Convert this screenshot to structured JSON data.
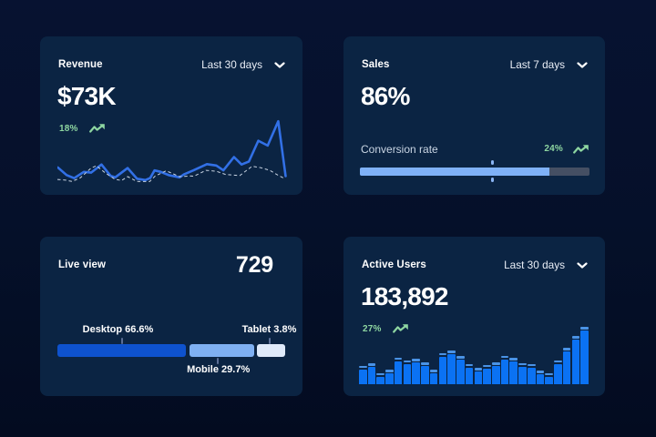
{
  "page": {
    "background_color": "#051029",
    "card_color": "#0b2443"
  },
  "colors": {
    "accent_green": "#8ed6a1",
    "line_blue": "#3270e6",
    "line_previous": "#c8d3e2",
    "progress_fill": "#7fb1f7",
    "progress_track": "#454f63",
    "desktop_blue": "#0e52ce",
    "mobile_blue": "#7fb0f2",
    "tablet_blue": "#dfeafa",
    "bar_blue": "#0b72f3",
    "bar_cap_blue": "#4a93e6"
  },
  "cards": {
    "revenue": {
      "title": "Revenue",
      "range_label": "Last 30 days",
      "value": "$73K",
      "delta": "18%"
    },
    "sales": {
      "title": "Sales",
      "range_label": "Last 7 days",
      "value": "86%",
      "metric_label": "Conversion rate",
      "delta": "24%"
    },
    "live_view": {
      "title": "Live view",
      "value": "729",
      "segments": [
        {
          "label": "Desktop 66.6%",
          "name": "desktop",
          "value": 66.6
        },
        {
          "label": "Mobile 29.7%",
          "name": "mobile",
          "value": 29.7
        },
        {
          "label": "Tablet 3.8%",
          "name": "tablet",
          "value": 3.8
        }
      ]
    },
    "active_users": {
      "title": "Active Users",
      "range_label": "Last 30 days",
      "value": "183,892",
      "delta": "27%"
    }
  },
  "chart_data": [
    {
      "type": "line",
      "title": "Revenue trend",
      "legend_position": "none",
      "grid": false,
      "x_range": [
        0,
        100
      ],
      "y_range": [
        0,
        100
      ],
      "series": [
        {
          "name": "current",
          "style": "solid",
          "color": "#3270e6",
          "points": [
            [
              0.2,
              24.3
            ],
            [
              4.0,
              13.1
            ],
            [
              7.3,
              8.5
            ],
            [
              11.5,
              17.8
            ],
            [
              14.7,
              16.8
            ],
            [
              19.2,
              28.8
            ],
            [
              23.2,
              11.8
            ],
            [
              25.2,
              9.7
            ],
            [
              30.6,
              23.5
            ],
            [
              34.7,
              7.7
            ],
            [
              38.3,
              5.7
            ],
            [
              40.4,
              8.6
            ],
            [
              42.3,
              20.0
            ],
            [
              44.9,
              18.0
            ],
            [
              48.7,
              12.8
            ],
            [
              53.2,
              9.7
            ],
            [
              55.1,
              14.1
            ],
            [
              59.3,
              20.1
            ],
            [
              65.1,
              29.3
            ],
            [
              69.2,
              27.3
            ],
            [
              72.3,
              20.1
            ],
            [
              76.9,
              39.9
            ],
            [
              80.2,
              28.8
            ],
            [
              83.4,
              33.2
            ],
            [
              87.5,
              64.1
            ],
            [
              91.6,
              56.9
            ],
            [
              96.2,
              93.0
            ],
            [
              99.4,
              11.5
            ]
          ]
        },
        {
          "name": "previous",
          "style": "dashed",
          "color": "#c8d3e2",
          "points": [
            [
              0,
              6.6
            ],
            [
              3.6,
              5.5
            ],
            [
              6.4,
              3.6
            ],
            [
              10.0,
              9.0
            ],
            [
              14.7,
              23.5
            ],
            [
              17.0,
              26.9
            ],
            [
              21.0,
              15.9
            ],
            [
              25.0,
              7.0
            ],
            [
              27.9,
              5.0
            ],
            [
              30.6,
              10.8
            ],
            [
              34.7,
              3.7
            ],
            [
              40.2,
              3.5
            ],
            [
              42.6,
              11.8
            ],
            [
              47.4,
              19.5
            ],
            [
              53.2,
              10.8
            ],
            [
              58.0,
              11.8
            ],
            [
              59.5,
              11.5
            ],
            [
              64.7,
              20.1
            ],
            [
              69.2,
              18.8
            ],
            [
              73.2,
              14.1
            ],
            [
              79.4,
              12.3
            ],
            [
              84.8,
              26.2
            ],
            [
              88.6,
              24.1
            ],
            [
              92.5,
              20.1
            ],
            [
              96.0,
              13.1
            ],
            [
              99.0,
              7.8
            ]
          ]
        }
      ]
    },
    {
      "type": "bar",
      "title": "Conversion rate progress",
      "value": 86,
      "fill_percent": 82.7,
      "marker_percent": 57.7,
      "delta": 24
    },
    {
      "type": "bar",
      "title": "Live view device split",
      "categories": [
        "Desktop",
        "Mobile",
        "Tablet"
      ],
      "values": [
        66.6,
        29.7,
        3.8
      ],
      "display_widths": [
        56.2,
        28.4,
        12.6
      ],
      "colors": [
        "#0e52ce",
        "#7fb0f2",
        "#dfeafa"
      ]
    },
    {
      "type": "bar",
      "title": "Active users per day",
      "values": [
        20.5,
        23,
        12.5,
        16,
        29.5,
        26.5,
        28,
        24,
        16,
        34.5,
        37,
        31,
        22.5,
        18,
        21.5,
        24,
        31.5,
        29,
        23.5,
        22.5,
        15,
        12.5,
        26.5,
        40,
        53,
        63
      ],
      "y_max": 68
    }
  ]
}
